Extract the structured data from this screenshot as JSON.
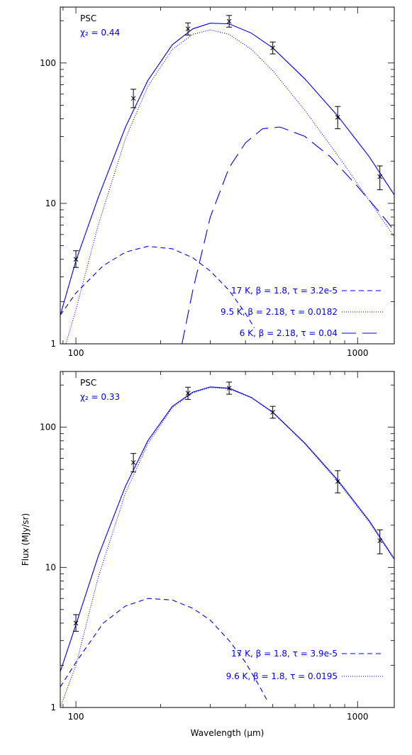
{
  "chart_data": [
    {
      "type": "line",
      "panel": "top",
      "scale": {
        "x": "log",
        "y": "log"
      },
      "xlim": [
        88,
        1350
      ],
      "ylim": [
        1,
        250
      ],
      "xticks": [
        100,
        1000
      ],
      "yticks": [
        1,
        10,
        100
      ],
      "xlabel": "",
      "ylabel": "",
      "grid": false,
      "annotations": {
        "source": "PSC",
        "chi": "χ₂ = 0.44"
      },
      "observations": {
        "x": [
          100,
          160,
          250,
          350,
          500,
          850,
          1200
        ],
        "y": [
          4.0,
          56,
          175,
          198,
          128,
          41,
          15.5
        ],
        "err_low": [
          3.5,
          48,
          158,
          180,
          116,
          34,
          12.5
        ],
        "err_high": [
          4.6,
          65,
          193,
          218,
          141,
          49,
          18.5
        ]
      },
      "series": [
        {
          "name": "17 K, β = 1.8, τ = 3.2e-5",
          "style": "dashed",
          "color": "#0000ee",
          "x": [
            88,
            100,
            125,
            150,
            180,
            220,
            260,
            300,
            350,
            400,
            430
          ],
          "y": [
            1.6,
            2.3,
            3.6,
            4.5,
            4.95,
            4.75,
            4.1,
            3.3,
            2.4,
            1.65,
            1.3
          ]
        },
        {
          "name": "9.5 K, β = 2.18, τ = 0.0182",
          "style": "dotted",
          "color": "#0000ee",
          "x": [
            90,
            100,
            120,
            150,
            180,
            220,
            260,
            300,
            350,
            420,
            500,
            650,
            850,
            1100,
            1350
          ],
          "y": [
            0.85,
            1.75,
            7,
            29,
            68,
            125,
            160,
            172,
            160,
            125,
            88,
            46,
            22,
            10.5,
            5.8
          ]
        },
        {
          "name": "6 K, β = 2.18, τ = 0.04",
          "style": "longdash",
          "color": "#0000ee",
          "x": [
            238,
            260,
            300,
            350,
            400,
            460,
            530,
            650,
            800,
            1000,
            1200,
            1350
          ],
          "y": [
            1.0,
            2.4,
            8,
            18,
            27,
            34,
            35,
            30,
            21.5,
            13.2,
            8.6,
            6.4
          ]
        },
        {
          "name": "",
          "style": "solid",
          "color": "#0000ee",
          "x": [
            88,
            100,
            120,
            150,
            180,
            220,
            260,
            300,
            350,
            420,
            500,
            650,
            850,
            1100,
            1350
          ],
          "y": [
            1.6,
            3.9,
            11,
            35,
            75,
            135,
            175,
            192,
            190,
            163,
            128,
            77,
            42,
            21.5,
            11.5
          ]
        }
      ],
      "legend": [
        {
          "label": "17 K, β = 1.8, τ = 3.2e-5",
          "style": "dashed"
        },
        {
          "label": "9.5 K, β = 2.18, τ = 0.0182",
          "style": "dotted"
        },
        {
          "label": "6 K, β = 2.18, τ = 0.04",
          "style": "longdash"
        }
      ]
    },
    {
      "type": "line",
      "panel": "bottom",
      "scale": {
        "x": "log",
        "y": "log"
      },
      "xlim": [
        88,
        1350
      ],
      "ylim": [
        1,
        250
      ],
      "xticks": [
        100,
        1000
      ],
      "yticks": [
        1,
        10,
        100
      ],
      "xlabel": "Wavelength (μm)",
      "ylabel": "Flux (MJy/sr)",
      "grid": false,
      "annotations": {
        "source": "PSC",
        "chi": "χ₂ = 0.33"
      },
      "observations": {
        "x": [
          100,
          160,
          250,
          350,
          500,
          850,
          1200
        ],
        "y": [
          4.0,
          56,
          175,
          190,
          128,
          41,
          15.5
        ],
        "err_low": [
          3.5,
          48,
          158,
          172,
          116,
          34,
          12.5
        ],
        "err_high": [
          4.6,
          65,
          193,
          210,
          141,
          49,
          18.5
        ]
      },
      "series": [
        {
          "name": "17 K, β = 1.8, τ = 3.9e-5",
          "style": "dashed",
          "color": "#0000ee",
          "x": [
            88,
            100,
            125,
            150,
            180,
            220,
            260,
            300,
            350,
            400,
            450,
            480
          ],
          "y": [
            1.4,
            2.1,
            4.0,
            5.3,
            6.0,
            5.85,
            5.1,
            4.2,
            3.0,
            2.1,
            1.4,
            1.1
          ]
        },
        {
          "name": "9.6 K, β = 1.8, τ = 0.0195",
          "style": "dotted",
          "color": "#0000ee",
          "x": [
            88,
            100,
            120,
            150,
            180,
            220,
            260,
            300,
            350,
            420,
            500,
            650,
            850,
            1100,
            1350
          ],
          "y": [
            1.0,
            2.0,
            8.5,
            34,
            76,
            138,
            176,
            192,
            188,
            162,
            127,
            76,
            41,
            21,
            11.3
          ]
        },
        {
          "name": "",
          "style": "solid",
          "color": "#0000ee",
          "x": [
            88,
            100,
            120,
            150,
            180,
            220,
            260,
            300,
            350,
            420,
            500,
            650,
            850,
            1100,
            1350
          ],
          "y": [
            1.8,
            3.9,
            12,
            38,
            80,
            141,
            178,
            194,
            190,
            163,
            128,
            77,
            42,
            21.5,
            11.5
          ]
        }
      ],
      "legend": [
        {
          "label": "17 K, β = 1.8, τ = 3.9e-5",
          "style": "dashed"
        },
        {
          "label": "9.6 K, β = 1.8, τ = 0.0195",
          "style": "dotted"
        }
      ]
    }
  ]
}
